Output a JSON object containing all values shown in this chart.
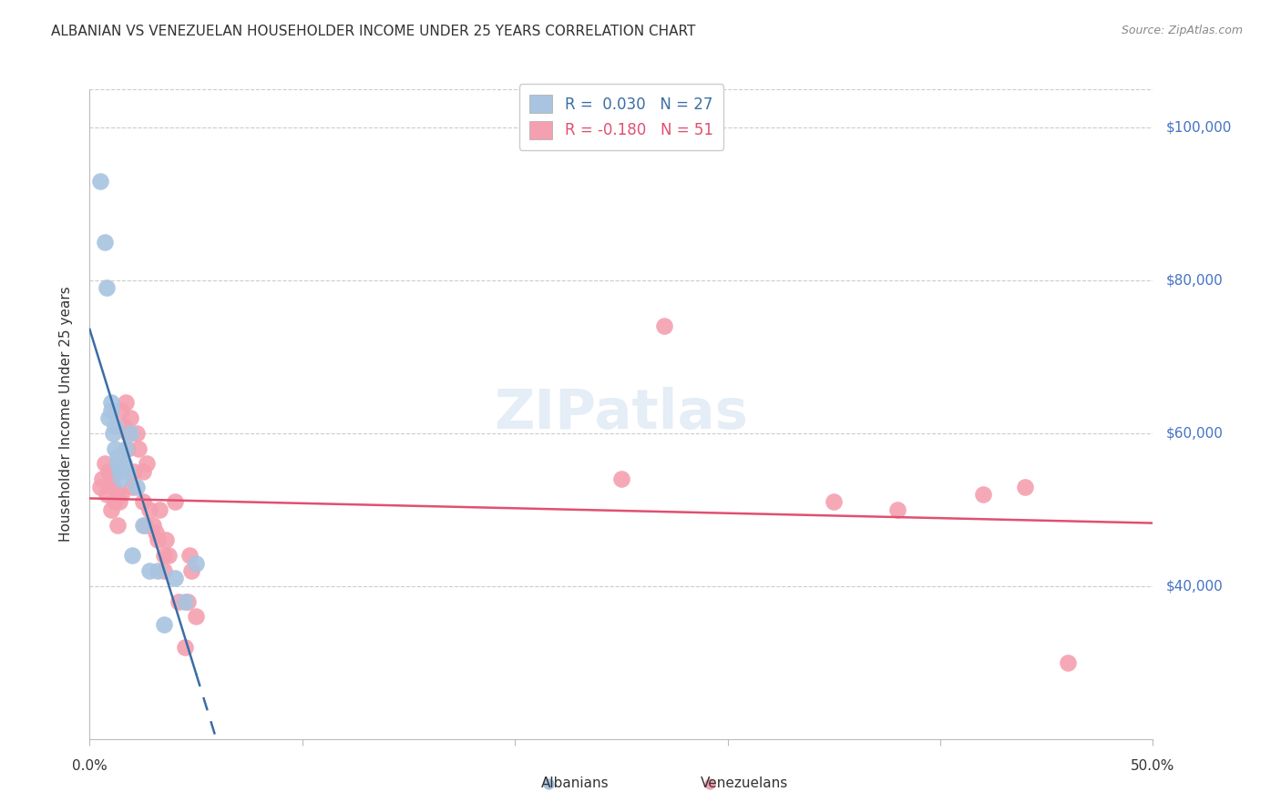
{
  "title": "ALBANIAN VS VENEZUELAN HOUSEHOLDER INCOME UNDER 25 YEARS CORRELATION CHART",
  "source": "Source: ZipAtlas.com",
  "ylabel": "Householder Income Under 25 years",
  "watermark": "ZIPatlas",
  "xlim": [
    0.0,
    0.5
  ],
  "ylim": [
    20000,
    105000
  ],
  "yticks": [
    40000,
    60000,
    80000,
    100000
  ],
  "ytick_labels": [
    "$40,000",
    "$60,000",
    "$80,000",
    "$100,000"
  ],
  "albanian_R": 0.03,
  "albanian_N": 27,
  "venezuelan_R": -0.18,
  "venezuelan_N": 51,
  "albanian_color": "#a8c4e0",
  "albanian_line_color": "#3a6ea5",
  "venezuelan_color": "#f4a0b0",
  "venezuelan_line_color": "#e05070",
  "albanian_x": [
    0.005,
    0.007,
    0.008,
    0.009,
    0.01,
    0.01,
    0.011,
    0.012,
    0.012,
    0.013,
    0.013,
    0.014,
    0.015,
    0.015,
    0.016,
    0.017,
    0.018,
    0.019,
    0.02,
    0.022,
    0.025,
    0.028,
    0.032,
    0.035,
    0.04,
    0.045,
    0.05
  ],
  "albanian_y": [
    93000,
    85000,
    79000,
    62000,
    63000,
    64000,
    60000,
    58000,
    61000,
    57000,
    56000,
    55000,
    56000,
    54000,
    56000,
    58000,
    55000,
    60000,
    44000,
    53000,
    48000,
    42000,
    42000,
    35000,
    41000,
    38000,
    43000
  ],
  "venezuelan_x": [
    0.005,
    0.006,
    0.007,
    0.008,
    0.009,
    0.01,
    0.01,
    0.011,
    0.012,
    0.012,
    0.013,
    0.013,
    0.014,
    0.015,
    0.015,
    0.016,
    0.017,
    0.018,
    0.018,
    0.019,
    0.02,
    0.021,
    0.022,
    0.023,
    0.025,
    0.025,
    0.026,
    0.027,
    0.028,
    0.03,
    0.031,
    0.032,
    0.033,
    0.035,
    0.035,
    0.036,
    0.037,
    0.04,
    0.042,
    0.045,
    0.046,
    0.047,
    0.048,
    0.05,
    0.25,
    0.27,
    0.35,
    0.38,
    0.42,
    0.44,
    0.46
  ],
  "venezuelan_y": [
    53000,
    54000,
    56000,
    52000,
    55000,
    54000,
    50000,
    53000,
    51000,
    55000,
    48000,
    52000,
    51000,
    52000,
    63000,
    61000,
    64000,
    60000,
    58000,
    62000,
    53000,
    55000,
    60000,
    58000,
    51000,
    55000,
    48000,
    56000,
    50000,
    48000,
    47000,
    46000,
    50000,
    44000,
    42000,
    46000,
    44000,
    51000,
    38000,
    32000,
    38000,
    44000,
    42000,
    36000,
    54000,
    74000,
    51000,
    50000,
    52000,
    53000,
    30000
  ]
}
